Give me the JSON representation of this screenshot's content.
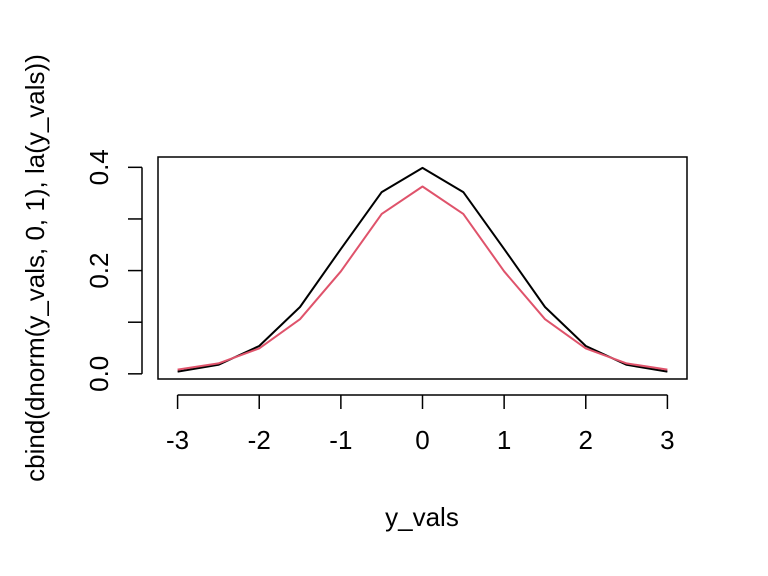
{
  "chart_data": {
    "type": "line",
    "title": "",
    "xlabel": "y_vals",
    "ylabel": "cbind(dnorm(y_vals, 0, 1), la(y_vals))",
    "xlim": [
      -3.24,
      3.24
    ],
    "ylim": [
      -0.01,
      0.42
    ],
    "grid": false,
    "x": [
      -3,
      -2.5,
      -2,
      -1.5,
      -1,
      -0.5,
      0,
      0.5,
      1,
      1.5,
      2,
      2.5,
      3
    ],
    "x_ticks": [
      -3,
      -2,
      -1,
      0,
      1,
      2,
      3
    ],
    "x_tick_labels": [
      "-3",
      "-2",
      "-1",
      "0",
      "1",
      "2",
      "3"
    ],
    "y_ticks": [
      0,
      0.1,
      0.2,
      0.3,
      0.4
    ],
    "y_tick_labels": [
      "0.0",
      "",
      "0.2",
      "",
      "0.4"
    ],
    "series": [
      {
        "color": "#000000",
        "values": [
          0.0044,
          0.0175,
          0.054,
          0.1295,
          0.242,
          0.352,
          0.3989,
          0.352,
          0.242,
          0.1295,
          0.054,
          0.0175,
          0.0044
        ]
      },
      {
        "color": "#df536b",
        "values": [
          0.0082,
          0.0203,
          0.0492,
          0.1059,
          0.1986,
          0.3098,
          0.3628,
          0.3098,
          0.1986,
          0.1059,
          0.0492,
          0.0203,
          0.0082
        ]
      }
    ]
  }
}
